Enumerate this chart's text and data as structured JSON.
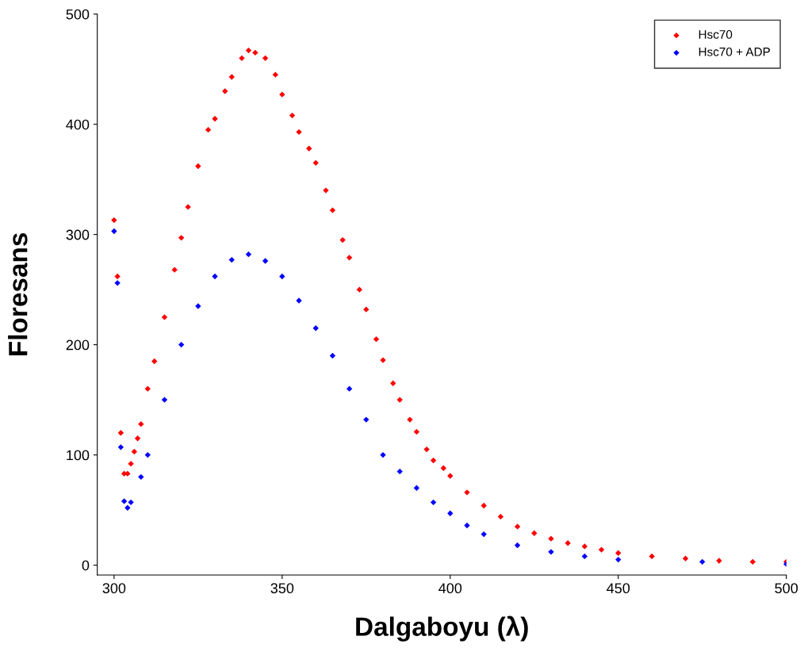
{
  "chart_data": {
    "type": "scatter",
    "xlabel": "Dalgaboyu (λ)",
    "ylabel": "Floresans",
    "xlim": [
      295,
      500
    ],
    "ylim": [
      -9,
      500
    ],
    "xticks": [
      300,
      350,
      400,
      450,
      500
    ],
    "yticks": [
      0,
      100,
      200,
      300,
      400,
      500
    ],
    "grid": false,
    "legend": "top right",
    "marker": "diamond",
    "series": [
      {
        "name": "Hsc70",
        "color": "#ff0000",
        "x": [
          300,
          301,
          302,
          303,
          304,
          305,
          306,
          307,
          308,
          310,
          312,
          315,
          318,
          320,
          322,
          325,
          328,
          330,
          333,
          335,
          338,
          340,
          342,
          345,
          348,
          350,
          353,
          355,
          358,
          360,
          363,
          365,
          368,
          370,
          373,
          375,
          378,
          380,
          383,
          385,
          388,
          390,
          393,
          395,
          398,
          400,
          405,
          410,
          415,
          420,
          425,
          430,
          435,
          440,
          445,
          450,
          460,
          470,
          480,
          490,
          500
        ],
        "values": [
          313,
          262,
          120,
          83,
          83,
          92,
          103,
          115,
          128,
          160,
          185,
          225,
          268,
          297,
          325,
          362,
          395,
          405,
          430,
          443,
          460,
          467,
          465,
          460,
          445,
          427,
          408,
          393,
          378,
          365,
          340,
          322,
          295,
          279,
          250,
          232,
          205,
          186,
          165,
          150,
          132,
          121,
          105,
          95,
          88,
          81,
          66,
          54,
          44,
          35,
          29,
          24,
          20,
          17,
          14,
          11,
          8,
          6,
          4,
          3,
          3
        ]
      },
      {
        "name": "Hsc70 + ADP",
        "color": "#0000ff",
        "x": [
          300,
          301,
          302,
          303,
          304,
          305,
          308,
          310,
          315,
          320,
          325,
          330,
          335,
          340,
          345,
          350,
          355,
          360,
          365,
          370,
          375,
          380,
          385,
          390,
          395,
          400,
          405,
          410,
          420,
          430,
          440,
          450,
          475,
          500
        ],
        "values": [
          303,
          256,
          107,
          58,
          52,
          57,
          80,
          100,
          150,
          200,
          235,
          262,
          277,
          282,
          276,
          262,
          240,
          215,
          190,
          160,
          132,
          100,
          85,
          70,
          57,
          47,
          36,
          28,
          18,
          12,
          8,
          5,
          3,
          1
        ]
      }
    ]
  }
}
